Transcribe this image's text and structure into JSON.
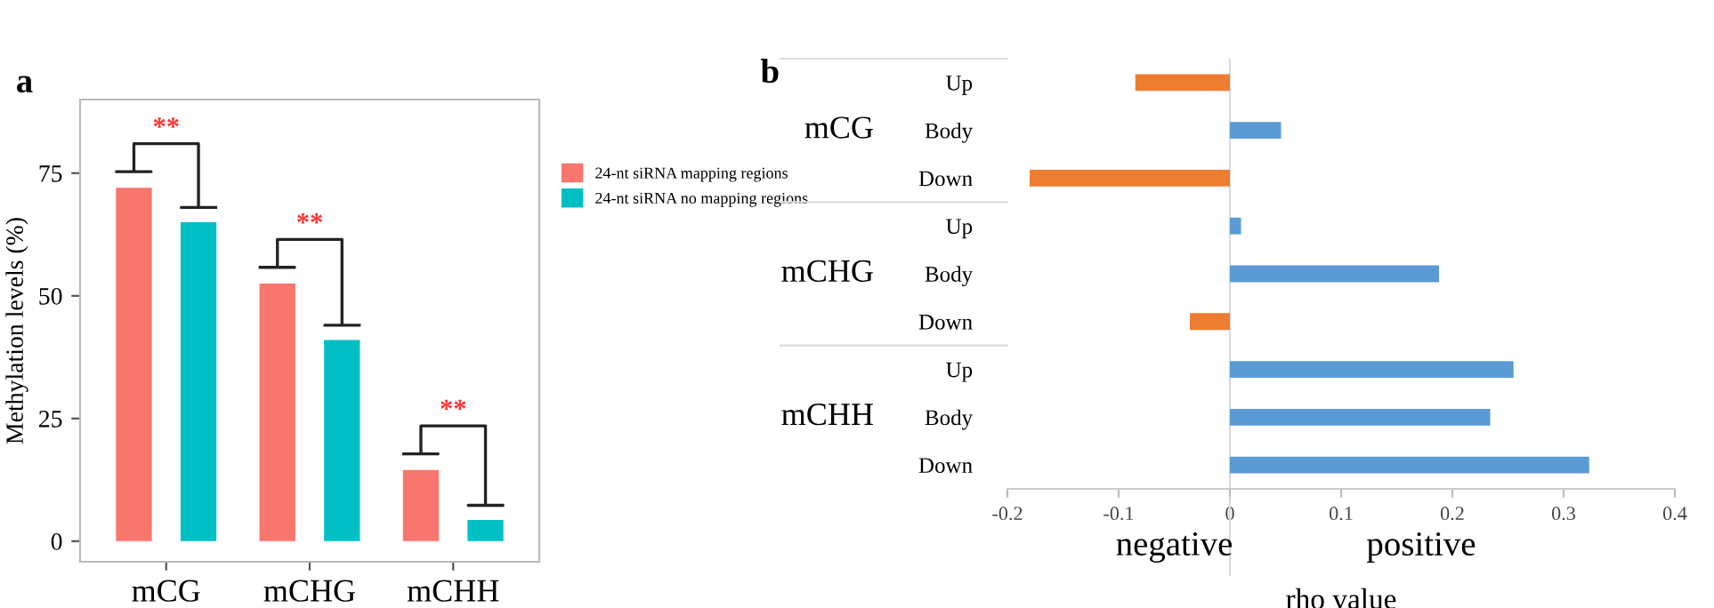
{
  "chart_data": [
    {
      "type": "bar",
      "title": "a",
      "ylabel": "Methylation levels (%)",
      "categories": [
        "mCG",
        "mCHG",
        "mCHH"
      ],
      "series": [
        {
          "name": "24-nt siRNA mapping regions",
          "color": "#f8766d",
          "values": [
            72,
            52.5,
            14.5
          ]
        },
        {
          "name": "24-nt siRNA no mapping regions",
          "color": "#00bfc4",
          "values": [
            65,
            41,
            4.3
          ]
        }
      ],
      "ylim": [
        -4.2,
        90
      ],
      "yticks": [
        0,
        25,
        50,
        75
      ],
      "grid": false,
      "legend": "right",
      "annotations": [
        "**",
        "**",
        "**"
      ]
    },
    {
      "type": "bar",
      "title": "b",
      "orientation": "horizontal",
      "xlabel": "rho value",
      "categories": [
        "Up",
        "Body",
        "Down",
        "Up",
        "Body",
        "Down",
        "Up",
        "Body",
        "Down"
      ],
      "values": [
        -0.085,
        0.046,
        -0.18,
        0.01,
        0.188,
        -0.036,
        0.255,
        0.234,
        0.323
      ],
      "colors": [
        "#ed7d31",
        "#5b9bd5",
        "#ed7d31",
        "#5b9bd5",
        "#5b9bd5",
        "#ed7d31",
        "#5b9bd5",
        "#5b9bd5",
        "#5b9bd5"
      ],
      "xlim": [
        -0.2,
        0.4
      ],
      "xticks": [
        -0.2,
        -0.1,
        0,
        0.1,
        0.2,
        0.3,
        0.4
      ],
      "grid": false,
      "ref_lines": [
        {
          "axis": "x",
          "value": 0,
          "color": "#d9d9d9"
        }
      ],
      "annotations": [
        "mCG",
        "mCHG",
        "mCHH",
        "negative",
        "positive"
      ]
    }
  ]
}
